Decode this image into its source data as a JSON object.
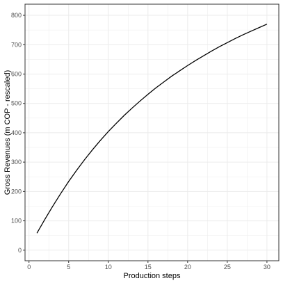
{
  "chart_data": {
    "type": "line",
    "title": "",
    "xlabel": "Production steps",
    "ylabel": "Gross Revenues (m COP - rescaled)",
    "xlim": [
      -0.5,
      31.5
    ],
    "ylim": [
      -36,
      838
    ],
    "x_ticks": [
      0,
      5,
      10,
      15,
      20,
      25,
      30
    ],
    "y_ticks": [
      0,
      100,
      200,
      300,
      400,
      500,
      600,
      700,
      800
    ],
    "grid": true,
    "legend": "none",
    "colors": {
      "line": "#000000",
      "grid": "#ebebeb",
      "panel_border": "#333333"
    },
    "series": [
      {
        "x": [
          1,
          2,
          3,
          4,
          5,
          6,
          7,
          8,
          9,
          10,
          11,
          12,
          13,
          14,
          15,
          16,
          17,
          18,
          19,
          20,
          21,
          22,
          23,
          24,
          25,
          26,
          27,
          28,
          29,
          30
        ],
        "values": [
          58,
          105,
          150,
          193,
          234,
          272,
          308,
          342,
          374,
          404,
          432,
          459,
          484,
          508,
          531,
          553,
          573,
          593,
          611,
          629,
          646,
          662,
          678,
          693,
          707,
          721,
          734,
          746,
          758,
          770
        ]
      }
    ]
  }
}
